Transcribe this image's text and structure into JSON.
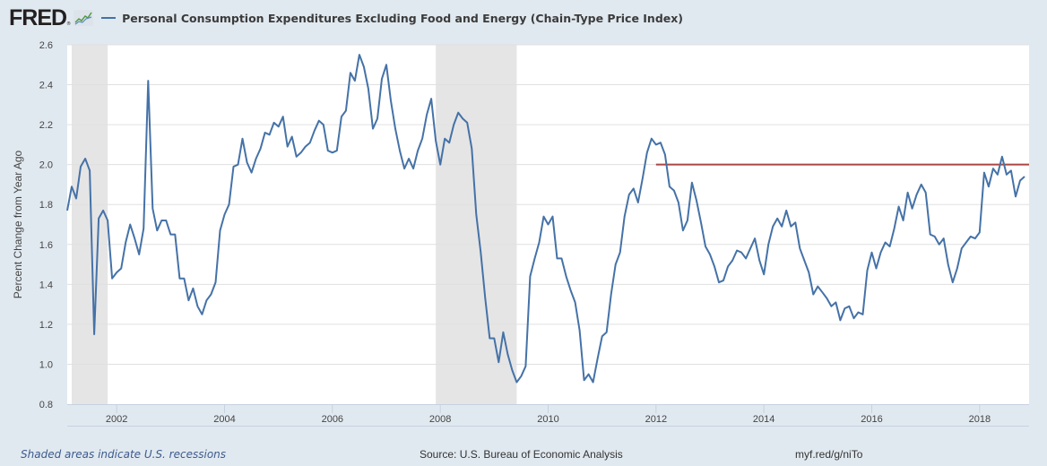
{
  "header": {
    "logo": "FRED",
    "logo_icon": "line-graph-icon",
    "series_title": "Personal Consumption Expenditures Excluding Food and Energy (Chain-Type Price Index)"
  },
  "footer": {
    "recession_note": "Shaded areas indicate U.S. recessions",
    "source": "Source: U.S. Bureau of Economic Analysis",
    "short_url": "myf.red/g/niTo"
  },
  "colors": {
    "series": "#4572a7",
    "target_line": "#aa4643",
    "recession": "#e5e5e5",
    "background": "#e1e9f0"
  },
  "chart_data": {
    "type": "line",
    "title": "Personal Consumption Expenditures Excluding Food and Energy (Chain-Type Price Index)",
    "xlabel": "",
    "ylabel": "Percent Change from Year Ago",
    "ylim": [
      0.8,
      2.6
    ],
    "yticks": [
      "0.8",
      "1.0",
      "1.2",
      "1.4",
      "1.6",
      "1.8",
      "2.0",
      "2.2",
      "2.4",
      "2.6"
    ],
    "xlim": [
      "2001-02",
      "2018-12"
    ],
    "xticks": [
      "2002",
      "2004",
      "2006",
      "2008",
      "2010",
      "2012",
      "2014",
      "2016",
      "2018"
    ],
    "grid": true,
    "legend": "top-left",
    "recessions": [
      {
        "start": "2001-03",
        "end": "2001-11"
      },
      {
        "start": "2007-12",
        "end": "2009-06"
      }
    ],
    "series": [
      {
        "name": "Personal Consumption Expenditures Excluding Food and Energy (Chain-Type Price Index)",
        "start": "2001-02",
        "frequency": "monthly",
        "values": [
          1.77,
          1.89,
          1.83,
          1.99,
          2.03,
          1.97,
          1.15,
          1.73,
          1.77,
          1.72,
          1.43,
          1.46,
          1.48,
          1.61,
          1.7,
          1.63,
          1.55,
          1.68,
          2.42,
          1.78,
          1.67,
          1.72,
          1.72,
          1.65,
          1.65,
          1.43,
          1.43,
          1.32,
          1.38,
          1.29,
          1.25,
          1.32,
          1.35,
          1.41,
          1.67,
          1.75,
          1.8,
          1.99,
          2.0,
          2.13,
          2.01,
          1.96,
          2.03,
          2.08,
          2.16,
          2.15,
          2.21,
          2.19,
          2.24,
          2.09,
          2.14,
          2.04,
          2.06,
          2.09,
          2.11,
          2.17,
          2.22,
          2.2,
          2.07,
          2.06,
          2.07,
          2.24,
          2.27,
          2.46,
          2.42,
          2.55,
          2.49,
          2.38,
          2.18,
          2.23,
          2.43,
          2.5,
          2.32,
          2.18,
          2.07,
          1.98,
          2.03,
          1.98,
          2.07,
          2.13,
          2.25,
          2.33,
          2.12,
          2.0,
          2.13,
          2.11,
          2.2,
          2.26,
          2.23,
          2.21,
          2.08,
          1.75,
          1.56,
          1.33,
          1.13,
          1.13,
          1.01,
          1.16,
          1.05,
          0.97,
          0.91,
          0.94,
          0.99,
          1.44,
          1.53,
          1.61,
          1.74,
          1.7,
          1.74,
          1.53,
          1.53,
          1.44,
          1.37,
          1.31,
          1.17,
          0.92,
          0.95,
          0.91,
          1.03,
          1.14,
          1.16,
          1.35,
          1.5,
          1.56,
          1.74,
          1.85,
          1.88,
          1.81,
          1.93,
          2.06,
          2.13,
          2.1,
          2.11,
          2.05,
          1.89,
          1.87,
          1.81,
          1.67,
          1.72,
          1.91,
          1.82,
          1.71,
          1.59,
          1.55,
          1.49,
          1.41,
          1.42,
          1.49,
          1.52,
          1.57,
          1.56,
          1.53,
          1.58,
          1.63,
          1.52,
          1.45,
          1.6,
          1.69,
          1.73,
          1.69,
          1.77,
          1.69,
          1.71,
          1.58,
          1.52,
          1.46,
          1.35,
          1.39,
          1.36,
          1.33,
          1.29,
          1.31,
          1.22,
          1.28,
          1.29,
          1.23,
          1.26,
          1.25,
          1.47,
          1.56,
          1.48,
          1.56,
          1.61,
          1.59,
          1.68,
          1.79,
          1.72,
          1.86,
          1.78,
          1.85,
          1.9,
          1.86,
          1.65,
          1.64,
          1.6,
          1.63,
          1.5,
          1.41,
          1.48,
          1.58,
          1.61,
          1.64,
          1.63,
          1.66,
          1.96,
          1.89,
          1.98,
          1.95,
          2.04,
          1.95,
          1.97,
          1.84,
          1.92,
          1.94
        ]
      },
      {
        "name": "2% reference line",
        "start": "2012-01",
        "end": "2018-12",
        "value": 2.0
      }
    ]
  }
}
